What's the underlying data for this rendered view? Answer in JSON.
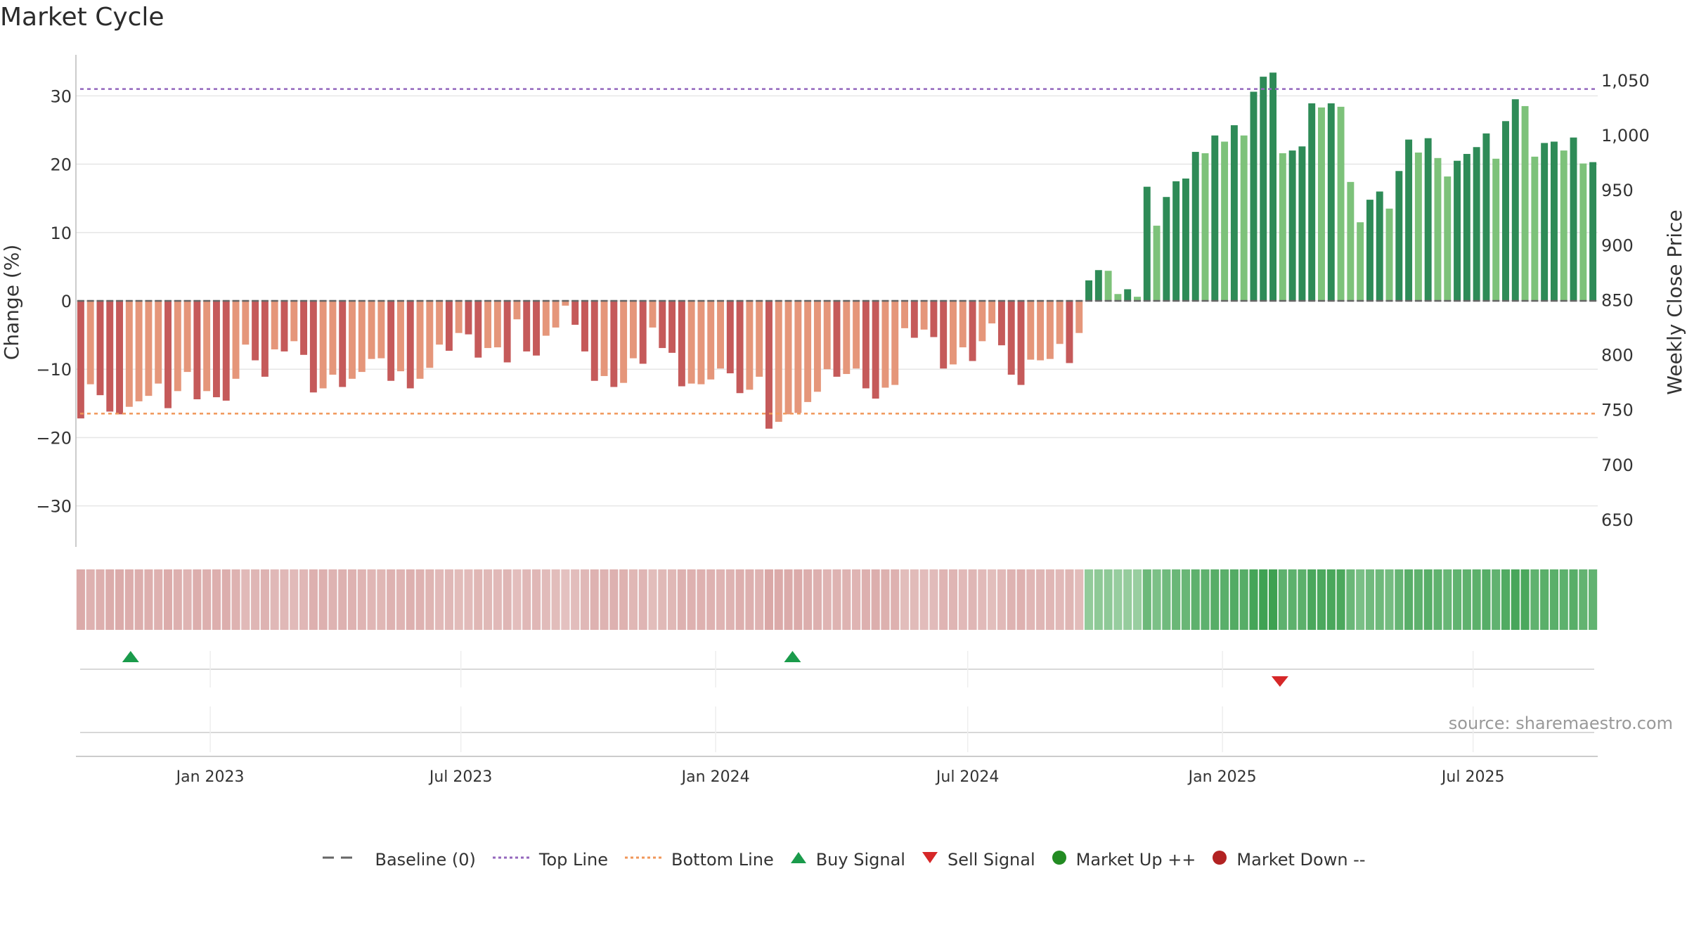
{
  "title": "Market Cycle",
  "source": "source: sharemaestro.com",
  "colors": {
    "neg_dark": "#c55a5a",
    "neg_light": "#e5967a",
    "pos_dark": "#2e8b57",
    "pos_light": "#7dc27a",
    "top_line": "#9467bd",
    "bottom_line": "#f0975a",
    "buy": "#1a9b4b",
    "sell": "#d62728",
    "market_up": "#228b22",
    "market_down": "#b22222",
    "baseline": "#666666"
  },
  "legend": [
    {
      "label": "Baseline (0)",
      "icon": "dash-line-icon"
    },
    {
      "label": "Top Line",
      "icon": "dotted-line-icon"
    },
    {
      "label": "Bottom Line",
      "icon": "dotted-line-icon"
    },
    {
      "label": "Buy Signal",
      "icon": "triangle-up-icon"
    },
    {
      "label": "Sell Signal",
      "icon": "triangle-down-icon"
    },
    {
      "label": "Market Up ++",
      "icon": "circle-icon"
    },
    {
      "label": "Market Down --",
      "icon": "circle-icon"
    }
  ],
  "chart_data": {
    "type": "bar",
    "title": "Market Cycle",
    "ylabel": "Change (%)",
    "ylabel_right": "Weekly Close Price",
    "ylim": [
      -36,
      36
    ],
    "yticks": [
      30,
      20,
      10,
      0,
      -10,
      -20,
      -30
    ],
    "ytick_labels": [
      "30",
      "20",
      "10",
      "0",
      "−10",
      "−20",
      "−30"
    ],
    "ylim_right": [
      625,
      1073
    ],
    "yticks_right": [
      1050,
      1000,
      950,
      900,
      850,
      800,
      750,
      700,
      650
    ],
    "ytick_labels_right": [
      "1,050",
      "1,000",
      "950",
      "900",
      "850",
      "800",
      "750",
      "700",
      "650"
    ],
    "top_line": 31,
    "bottom_line": -16.5,
    "x_start": "2022-09-26",
    "x_tick_labels": [
      "Jan 2023",
      "Jul 2023",
      "Jan 2024",
      "Jul 2024",
      "Jan 2025",
      "Jul 2025"
    ],
    "x_tick_dates": [
      "2023-01-01",
      "2023-07-01",
      "2024-01-01",
      "2024-07-01",
      "2025-01-01",
      "2025-07-01"
    ],
    "weekly_change": [
      -17.2,
      -12.2,
      -13.8,
      -16.2,
      -16.6,
      -15.5,
      -14.7,
      -13.9,
      -12.1,
      -15.7,
      -13.2,
      -10.4,
      -14.4,
      -13.2,
      -14.1,
      -14.6,
      -11.4,
      -6.4,
      -8.7,
      -11.1,
      -7.1,
      -7.4,
      -5.9,
      -7.9,
      -13.4,
      -12.8,
      -10.8,
      -12.6,
      -11.4,
      -10.4,
      -8.5,
      -8.4,
      -11.7,
      -10.3,
      -12.8,
      -11.4,
      -9.8,
      -6.4,
      -7.3,
      -4.7,
      -4.9,
      -8.3,
      -6.9,
      -6.8,
      -9.0,
      -2.7,
      -7.4,
      -8.0,
      -5.1,
      -3.9,
      -0.7,
      -3.5,
      -7.4,
      -11.7,
      -11.0,
      -12.6,
      -12.0,
      -8.4,
      -9.2,
      -3.9,
      -6.9,
      -7.6,
      -12.5,
      -12.1,
      -12.2,
      -11.5,
      -9.9,
      -10.6,
      -13.5,
      -13.0,
      -11.1,
      -18.7,
      -17.7,
      -16.6,
      -16.4,
      -14.8,
      -13.3,
      -10.0,
      -11.1,
      -10.7,
      -9.9,
      -12.8,
      -14.3,
      -12.7,
      -12.3,
      -4.0,
      -5.4,
      -4.2,
      -5.3,
      -9.9,
      -9.3,
      -6.8,
      -8.8,
      -5.9,
      -3.3,
      -6.5,
      -10.8,
      -12.3,
      -8.6,
      -8.7,
      -8.5,
      -6.3,
      -9.1,
      -4.7,
      3.0,
      4.5,
      4.4,
      1.0,
      1.7,
      0.6,
      16.7,
      11.0,
      15.2,
      17.5,
      17.9,
      21.8,
      21.6,
      24.2,
      23.3,
      25.7,
      24.2,
      30.6,
      32.8,
      33.4,
      21.6,
      22.0,
      22.6,
      28.9,
      28.3,
      28.9,
      28.4,
      17.4,
      11.5,
      14.8,
      16.0,
      13.5,
      19.0,
      23.6,
      21.7,
      23.8,
      20.9,
      18.2,
      20.5,
      21.5,
      22.5,
      24.5,
      20.8,
      26.3,
      29.5,
      28.5,
      21.1,
      23.1,
      23.3,
      22.0,
      23.9,
      20.1,
      20.3
    ],
    "bar_shade": [
      1,
      0,
      1,
      1,
      1,
      0,
      0,
      0,
      0,
      1,
      0,
      0,
      1,
      0,
      1,
      1,
      0,
      0,
      1,
      1,
      0,
      1,
      0,
      1,
      1,
      0,
      0,
      1,
      0,
      0,
      0,
      0,
      1,
      0,
      1,
      0,
      0,
      0,
      1,
      0,
      1,
      1,
      0,
      0,
      1,
      0,
      1,
      1,
      0,
      0,
      0,
      1,
      1,
      1,
      0,
      1,
      0,
      0,
      1,
      0,
      1,
      1,
      1,
      0,
      0,
      0,
      0,
      1,
      1,
      0,
      0,
      1,
      0,
      0,
      0,
      0,
      0,
      0,
      1,
      0,
      0,
      1,
      1,
      0,
      0,
      0,
      1,
      0,
      1,
      1,
      0,
      0,
      1,
      0,
      0,
      1,
      1,
      1,
      0,
      0,
      0,
      0,
      1,
      0,
      1,
      1,
      0,
      0,
      1,
      0,
      1,
      0,
      1,
      1,
      1,
      1,
      0,
      1,
      0,
      1,
      0,
      1,
      1,
      1,
      0,
      1,
      1,
      1,
      0,
      1,
      0,
      0,
      0,
      1,
      1,
      0,
      1,
      1,
      0,
      1,
      0,
      0,
      1,
      1,
      1,
      1,
      0,
      1,
      1,
      0,
      0,
      1,
      1,
      0,
      1,
      0,
      1
    ],
    "buy_signals": [
      "2022-11-01",
      "2024-02-22"
    ],
    "sell_signals": [
      "2025-02-08"
    ]
  }
}
